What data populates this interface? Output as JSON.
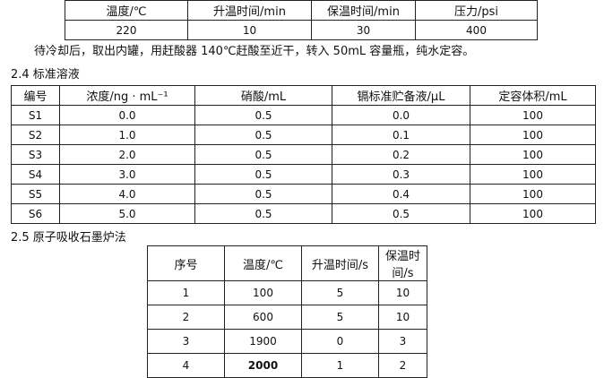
{
  "table1": {
    "headers": [
      "温度/℃",
      "升温时间/min",
      "保温时间/min",
      "压力/psi"
    ],
    "rows": [
      [
        "220",
        "10",
        "30",
        "400"
      ]
    ]
  },
  "paragraph": "待冷却后，取出内罐，用赶酸器 140℃赶酸至近干，转入 50mL 容量瓶，纯水定容。",
  "section_24": "2.4 标准溶液",
  "table2": {
    "headers": [
      "编号",
      "浓度/ng · mL⁻¹",
      "硝酸/mL",
      "镉标准贮备液/µL",
      "定容体积/mL"
    ],
    "rows": [
      [
        "S1",
        "0.0",
        "0.5",
        "0.0",
        "100"
      ],
      [
        "S2",
        "1.0",
        "0.5",
        "0.1",
        "100"
      ],
      [
        "S3",
        "2.0",
        "0.5",
        "0.2",
        "100"
      ],
      [
        "S4",
        "3.0",
        "0.5",
        "0.3",
        "100"
      ],
      [
        "S5",
        "4.0",
        "0.5",
        "0.4",
        "100"
      ],
      [
        "S6",
        "5.0",
        "0.5",
        "0.5",
        "100"
      ]
    ]
  },
  "section_25": "2.5 原子吸收石墨炉法",
  "table3": {
    "headers": [
      "序号",
      "温度/℃",
      "升温时间/s",
      "保温时间/s"
    ],
    "rows": [
      [
        "1",
        "100",
        "5",
        "10"
      ],
      [
        "2",
        "600",
        "5",
        "10"
      ],
      [
        "3",
        "1900",
        "0",
        "3"
      ],
      [
        "4",
        "2000",
        "1",
        "2"
      ]
    ]
  }
}
